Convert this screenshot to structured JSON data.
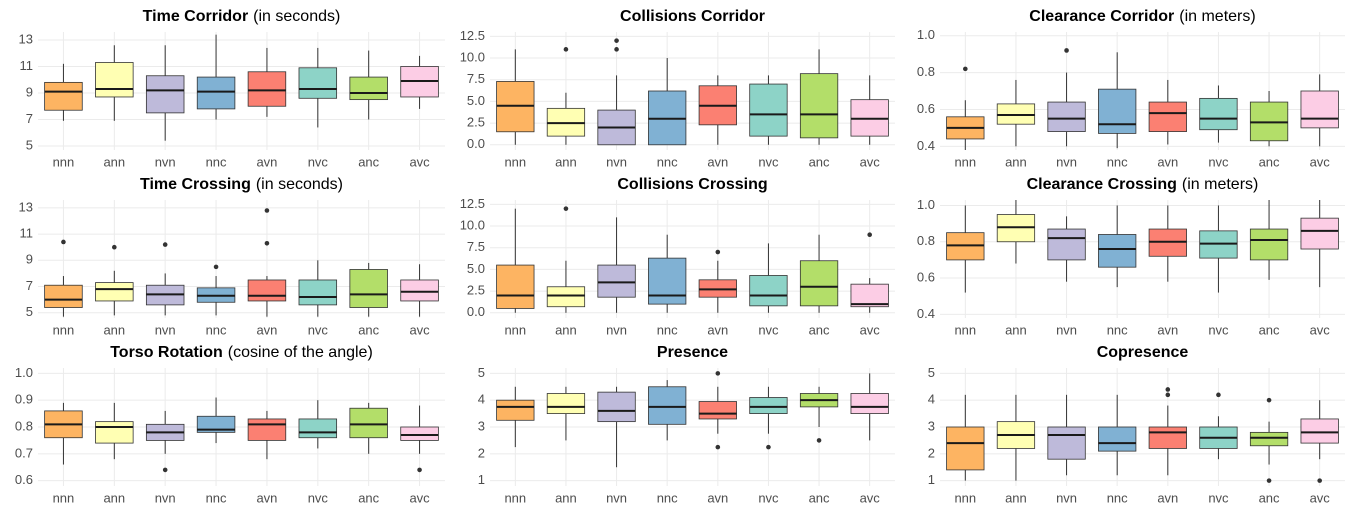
{
  "chart_data": [
    {
      "type": "box",
      "title": "Time Corridor",
      "title_note": "(in seconds)",
      "categories": [
        "nnn",
        "ann",
        "nvn",
        "nnc",
        "avn",
        "nvc",
        "anc",
        "avc"
      ],
      "colors": [
        "#fdb462",
        "#ffffb3",
        "#bebada",
        "#80b1d3",
        "#fb8072",
        "#8dd3c7",
        "#b3de69",
        "#fccde5"
      ],
      "boxes": [
        {
          "low": 6.9,
          "q1": 7.7,
          "median": 9.1,
          "q3": 9.8,
          "high": 11.2,
          "outliers": []
        },
        {
          "low": 6.9,
          "q1": 8.7,
          "median": 9.3,
          "q3": 11.3,
          "high": 12.6,
          "outliers": []
        },
        {
          "low": 5.4,
          "q1": 7.5,
          "median": 9.2,
          "q3": 10.3,
          "high": 12.6,
          "outliers": []
        },
        {
          "low": 7.0,
          "q1": 7.8,
          "median": 9.1,
          "q3": 10.2,
          "high": 13.4,
          "outliers": []
        },
        {
          "low": 7.2,
          "q1": 8.0,
          "median": 9.2,
          "q3": 10.6,
          "high": 12.4,
          "outliers": []
        },
        {
          "low": 6.4,
          "q1": 8.6,
          "median": 9.3,
          "q3": 10.9,
          "high": 12.4,
          "outliers": []
        },
        {
          "low": 7.0,
          "q1": 8.5,
          "median": 9.0,
          "q3": 10.2,
          "high": 12.2,
          "outliers": []
        },
        {
          "low": 7.8,
          "q1": 8.7,
          "median": 9.9,
          "q3": 11.0,
          "high": 11.8,
          "outliers": []
        }
      ],
      "ylim": [
        4.7,
        13.6
      ],
      "yticks": [
        5,
        7,
        9,
        11,
        13
      ],
      "grid": true
    },
    {
      "type": "box",
      "title": "Collisions Corridor",
      "categories": [
        "nnn",
        "ann",
        "nvn",
        "nnc",
        "avn",
        "nvc",
        "anc",
        "avc"
      ],
      "colors": [
        "#fdb462",
        "#ffffb3",
        "#bebada",
        "#80b1d3",
        "#fb8072",
        "#8dd3c7",
        "#b3de69",
        "#fccde5"
      ],
      "boxes": [
        {
          "low": 0,
          "q1": 1.5,
          "median": 4.5,
          "q3": 7.3,
          "high": 11,
          "outliers": []
        },
        {
          "low": 0,
          "q1": 1,
          "median": 2.5,
          "q3": 4.2,
          "high": 6,
          "outliers": [
            11
          ]
        },
        {
          "low": 0,
          "q1": 0,
          "median": 2,
          "q3": 4,
          "high": 8,
          "outliers": [
            11,
            12
          ]
        },
        {
          "low": 0,
          "q1": 0,
          "median": 3,
          "q3": 6.2,
          "high": 10,
          "outliers": []
        },
        {
          "low": 0,
          "q1": 2.3,
          "median": 4.5,
          "q3": 6.8,
          "high": 8,
          "outliers": []
        },
        {
          "low": 0,
          "q1": 1,
          "median": 3.5,
          "q3": 7,
          "high": 8,
          "outliers": []
        },
        {
          "low": 0,
          "q1": 0.8,
          "median": 3.5,
          "q3": 8.2,
          "high": 11,
          "outliers": []
        },
        {
          "low": 0,
          "q1": 1,
          "median": 3,
          "q3": 5.2,
          "high": 8,
          "outliers": []
        }
      ],
      "ylim": [
        -0.6,
        13
      ],
      "yticks": [
        {
          "value": 0,
          "label": "0.0"
        },
        2.5,
        {
          "value": 5,
          "label": "5.0"
        },
        7.5,
        {
          "value": 10,
          "label": "10.0"
        },
        12.5
      ],
      "grid": true
    },
    {
      "type": "box",
      "title": "Clearance Corridor",
      "title_note": "(in meters)",
      "categories": [
        "nnn",
        "ann",
        "nvn",
        "nnc",
        "avn",
        "nvc",
        "anc",
        "avc"
      ],
      "colors": [
        "#fdb462",
        "#ffffb3",
        "#bebada",
        "#80b1d3",
        "#fb8072",
        "#8dd3c7",
        "#b3de69",
        "#fccde5"
      ],
      "boxes": [
        {
          "low": 0.38,
          "q1": 0.44,
          "median": 0.5,
          "q3": 0.56,
          "high": 0.65,
          "outliers": [
            0.82
          ]
        },
        {
          "low": 0.4,
          "q1": 0.52,
          "median": 0.57,
          "q3": 0.63,
          "high": 0.76,
          "outliers": []
        },
        {
          "low": 0.4,
          "q1": 0.48,
          "median": 0.55,
          "q3": 0.64,
          "high": 0.8,
          "outliers": [
            0.92
          ]
        },
        {
          "low": 0.39,
          "q1": 0.47,
          "median": 0.52,
          "q3": 0.71,
          "high": 0.91,
          "outliers": []
        },
        {
          "low": 0.41,
          "q1": 0.48,
          "median": 0.58,
          "q3": 0.64,
          "high": 0.76,
          "outliers": []
        },
        {
          "low": 0.42,
          "q1": 0.49,
          "median": 0.55,
          "q3": 0.66,
          "high": 0.73,
          "outliers": []
        },
        {
          "low": 0.4,
          "q1": 0.43,
          "median": 0.53,
          "q3": 0.64,
          "high": 0.7,
          "outliers": []
        },
        {
          "low": 0.4,
          "q1": 0.5,
          "median": 0.55,
          "q3": 0.7,
          "high": 0.79,
          "outliers": []
        }
      ],
      "ylim": [
        0.38,
        1.02
      ],
      "yticks": [
        0.4,
        0.6,
        0.8,
        {
          "value": 1,
          "label": "1.0"
        }
      ],
      "grid": true
    },
    {
      "type": "box",
      "title": "Time Crossing",
      "title_note": "(in seconds)",
      "categories": [
        "nnn",
        "ann",
        "nvn",
        "nnc",
        "avn",
        "nvc",
        "anc",
        "avc"
      ],
      "colors": [
        "#fdb462",
        "#ffffb3",
        "#bebada",
        "#80b1d3",
        "#fb8072",
        "#8dd3c7",
        "#b3de69",
        "#fccde5"
      ],
      "boxes": [
        {
          "low": 4.7,
          "q1": 5.4,
          "median": 6.0,
          "q3": 7.1,
          "high": 7.8,
          "outliers": [
            10.4
          ]
        },
        {
          "low": 4.8,
          "q1": 5.9,
          "median": 6.8,
          "q3": 7.3,
          "high": 8.2,
          "outliers": [
            10.0
          ]
        },
        {
          "low": 4.8,
          "q1": 5.6,
          "median": 6.4,
          "q3": 7.1,
          "high": 8.0,
          "outliers": [
            10.2
          ]
        },
        {
          "low": 4.8,
          "q1": 5.8,
          "median": 6.3,
          "q3": 6.9,
          "high": 7.8,
          "outliers": [
            8.5
          ]
        },
        {
          "low": 4.7,
          "q1": 5.9,
          "median": 6.3,
          "q3": 7.5,
          "high": 7.8,
          "outliers": [
            10.3,
            12.8
          ]
        },
        {
          "low": 4.7,
          "q1": 5.6,
          "median": 6.2,
          "q3": 7.5,
          "high": 9.0,
          "outliers": []
        },
        {
          "low": 4.7,
          "q1": 5.4,
          "median": 6.4,
          "q3": 8.3,
          "high": 8.8,
          "outliers": []
        },
        {
          "low": 4.7,
          "q1": 5.9,
          "median": 6.6,
          "q3": 7.5,
          "high": 8.7,
          "outliers": []
        }
      ],
      "ylim": [
        4.6,
        13.6
      ],
      "yticks": [
        5,
        7,
        9,
        11,
        13
      ],
      "grid": true
    },
    {
      "type": "box",
      "title": "Collisions Crossing",
      "categories": [
        "nnn",
        "ann",
        "nvn",
        "nnc",
        "avn",
        "nvc",
        "anc",
        "avc"
      ],
      "colors": [
        "#fdb462",
        "#ffffb3",
        "#bebada",
        "#80b1d3",
        "#fb8072",
        "#8dd3c7",
        "#b3de69",
        "#fccde5"
      ],
      "boxes": [
        {
          "low": 0,
          "q1": 0.5,
          "median": 2,
          "q3": 5.5,
          "high": 12,
          "outliers": []
        },
        {
          "low": 0,
          "q1": 0.7,
          "median": 2,
          "q3": 3,
          "high": 6,
          "outliers": [
            12
          ]
        },
        {
          "low": 0,
          "q1": 1.8,
          "median": 3.5,
          "q3": 5.5,
          "high": 11,
          "outliers": []
        },
        {
          "low": 0,
          "q1": 1,
          "median": 2,
          "q3": 6.3,
          "high": 9,
          "outliers": []
        },
        {
          "low": 0,
          "q1": 1.8,
          "median": 2.7,
          "q3": 3.8,
          "high": 6,
          "outliers": [
            7
          ]
        },
        {
          "low": 0,
          "q1": 0.8,
          "median": 2,
          "q3": 4.3,
          "high": 8,
          "outliers": []
        },
        {
          "low": 0,
          "q1": 0.8,
          "median": 3,
          "q3": 6,
          "high": 9,
          "outliers": []
        },
        {
          "low": 0,
          "q1": 0.7,
          "median": 1,
          "q3": 3.3,
          "high": 4,
          "outliers": [
            9
          ]
        }
      ],
      "ylim": [
        -0.6,
        13
      ],
      "yticks": [
        {
          "value": 0,
          "label": "0.0"
        },
        2.5,
        {
          "value": 5,
          "label": "5.0"
        },
        7.5,
        {
          "value": 10,
          "label": "10.0"
        },
        12.5
      ],
      "grid": true
    },
    {
      "type": "box",
      "title": "Clearance Crossing",
      "title_note": "(in meters)",
      "categories": [
        "nnn",
        "ann",
        "nvn",
        "nnc",
        "avn",
        "nvc",
        "anc",
        "avc"
      ],
      "colors": [
        "#fdb462",
        "#ffffb3",
        "#bebada",
        "#80b1d3",
        "#fb8072",
        "#8dd3c7",
        "#b3de69",
        "#fccde5"
      ],
      "boxes": [
        {
          "low": 0.52,
          "q1": 0.7,
          "median": 0.78,
          "q3": 0.85,
          "high": 1.0,
          "outliers": []
        },
        {
          "low": 0.68,
          "q1": 0.8,
          "median": 0.88,
          "q3": 0.95,
          "high": 1.03,
          "outliers": []
        },
        {
          "low": 0.58,
          "q1": 0.7,
          "median": 0.82,
          "q3": 0.87,
          "high": 0.94,
          "outliers": []
        },
        {
          "low": 0.55,
          "q1": 0.66,
          "median": 0.76,
          "q3": 0.84,
          "high": 1.0,
          "outliers": []
        },
        {
          "low": 0.58,
          "q1": 0.72,
          "median": 0.8,
          "q3": 0.87,
          "high": 1.0,
          "outliers": []
        },
        {
          "low": 0.52,
          "q1": 0.71,
          "median": 0.79,
          "q3": 0.86,
          "high": 1.0,
          "outliers": []
        },
        {
          "low": 0.59,
          "q1": 0.7,
          "median": 0.81,
          "q3": 0.87,
          "high": 1.03,
          "outliers": []
        },
        {
          "low": 0.55,
          "q1": 0.76,
          "median": 0.86,
          "q3": 0.93,
          "high": 1.03,
          "outliers": []
        }
      ],
      "ylim": [
        0.38,
        1.03
      ],
      "yticks": [
        0.4,
        0.6,
        0.8,
        {
          "value": 1,
          "label": "1.0"
        }
      ],
      "grid": true
    },
    {
      "type": "box",
      "title": "Torso Rotation",
      "title_note": "(cosine of the angle)",
      "categories": [
        "nnn",
        "ann",
        "nvn",
        "nnc",
        "avn",
        "nvc",
        "anc",
        "avc"
      ],
      "colors": [
        "#fdb462",
        "#ffffb3",
        "#bebada",
        "#80b1d3",
        "#fb8072",
        "#8dd3c7",
        "#b3de69",
        "#fccde5"
      ],
      "boxes": [
        {
          "low": 0.66,
          "q1": 0.76,
          "median": 0.81,
          "q3": 0.86,
          "high": 0.89,
          "outliers": []
        },
        {
          "low": 0.68,
          "q1": 0.74,
          "median": 0.8,
          "q3": 0.82,
          "high": 0.89,
          "outliers": []
        },
        {
          "low": 0.7,
          "q1": 0.75,
          "median": 0.78,
          "q3": 0.81,
          "high": 0.86,
          "outliers": [
            0.64
          ]
        },
        {
          "low": 0.74,
          "q1": 0.78,
          "median": 0.79,
          "q3": 0.84,
          "high": 0.91,
          "outliers": []
        },
        {
          "low": 0.68,
          "q1": 0.75,
          "median": 0.81,
          "q3": 0.83,
          "high": 0.86,
          "outliers": []
        },
        {
          "low": 0.72,
          "q1": 0.76,
          "median": 0.78,
          "q3": 0.83,
          "high": 0.9,
          "outliers": []
        },
        {
          "low": 0.7,
          "q1": 0.76,
          "median": 0.81,
          "q3": 0.87,
          "high": 0.89,
          "outliers": []
        },
        {
          "low": 0.7,
          "q1": 0.75,
          "median": 0.77,
          "q3": 0.8,
          "high": 0.88,
          "outliers": [
            0.64
          ]
        }
      ],
      "ylim": [
        0.58,
        1.02
      ],
      "yticks": [
        0.6,
        0.7,
        0.8,
        0.9,
        {
          "value": 1,
          "label": "1.0"
        }
      ],
      "grid": true
    },
    {
      "type": "box",
      "title": "Presence",
      "categories": [
        "nnn",
        "ann",
        "nvn",
        "nnc",
        "avn",
        "nvc",
        "anc",
        "avc"
      ],
      "colors": [
        "#fdb462",
        "#ffffb3",
        "#bebada",
        "#80b1d3",
        "#fb8072",
        "#8dd3c7",
        "#b3de69",
        "#fccde5"
      ],
      "boxes": [
        {
          "low": 2.25,
          "q1": 3.25,
          "median": 3.75,
          "q3": 4.0,
          "high": 4.5,
          "outliers": []
        },
        {
          "low": 2.5,
          "q1": 3.5,
          "median": 3.75,
          "q3": 4.25,
          "high": 4.5,
          "outliers": []
        },
        {
          "low": 1.5,
          "q1": 3.2,
          "median": 3.6,
          "q3": 4.3,
          "high": 4.5,
          "outliers": []
        },
        {
          "low": 2.5,
          "q1": 3.1,
          "median": 3.75,
          "q3": 4.5,
          "high": 4.75,
          "outliers": []
        },
        {
          "low": 2.75,
          "q1": 3.3,
          "median": 3.5,
          "q3": 3.95,
          "high": 4.5,
          "outliers": [
            2.25,
            5
          ]
        },
        {
          "low": 2.75,
          "q1": 3.5,
          "median": 3.75,
          "q3": 4.1,
          "high": 4.5,
          "outliers": [
            2.25
          ]
        },
        {
          "low": 3.0,
          "q1": 3.75,
          "median": 4.0,
          "q3": 4.25,
          "high": 4.5,
          "outliers": [
            2.5
          ]
        },
        {
          "low": 2.5,
          "q1": 3.5,
          "median": 3.75,
          "q3": 4.25,
          "high": 5,
          "outliers": []
        }
      ],
      "ylim": [
        0.8,
        5.2
      ],
      "yticks": [
        1,
        2,
        3,
        4,
        5
      ],
      "grid": true
    },
    {
      "type": "box",
      "title": "Copresence",
      "categories": [
        "nnn",
        "ann",
        "nvn",
        "nnc",
        "avn",
        "nvc",
        "anc",
        "avc"
      ],
      "colors": [
        "#fdb462",
        "#ffffb3",
        "#bebada",
        "#80b1d3",
        "#fb8072",
        "#8dd3c7",
        "#b3de69",
        "#fccde5"
      ],
      "boxes": [
        {
          "low": 1.0,
          "q1": 1.4,
          "median": 2.4,
          "q3": 3.0,
          "high": 4.2,
          "outliers": []
        },
        {
          "low": 1.0,
          "q1": 2.2,
          "median": 2.7,
          "q3": 3.2,
          "high": 4.2,
          "outliers": []
        },
        {
          "low": 1.2,
          "q1": 1.8,
          "median": 2.7,
          "q3": 3.0,
          "high": 4.2,
          "outliers": []
        },
        {
          "low": 1.2,
          "q1": 2.1,
          "median": 2.4,
          "q3": 3.0,
          "high": 4.2,
          "outliers": []
        },
        {
          "low": 1.2,
          "q1": 2.2,
          "median": 2.8,
          "q3": 3.0,
          "high": 3.8,
          "outliers": [
            4.2,
            4.4
          ]
        },
        {
          "low": 1.8,
          "q1": 2.2,
          "median": 2.6,
          "q3": 3.0,
          "high": 3.4,
          "outliers": [
            4.2
          ]
        },
        {
          "low": 1.6,
          "q1": 2.3,
          "median": 2.6,
          "q3": 2.8,
          "high": 3.2,
          "outliers": [
            1.0,
            4.0
          ]
        },
        {
          "low": 1.8,
          "q1": 2.4,
          "median": 2.8,
          "q3": 3.3,
          "high": 4.0,
          "outliers": [
            1.0
          ]
        }
      ],
      "ylim": [
        0.8,
        5.2
      ],
      "yticks": [
        1,
        2,
        3,
        4,
        5
      ],
      "grid": true
    }
  ]
}
